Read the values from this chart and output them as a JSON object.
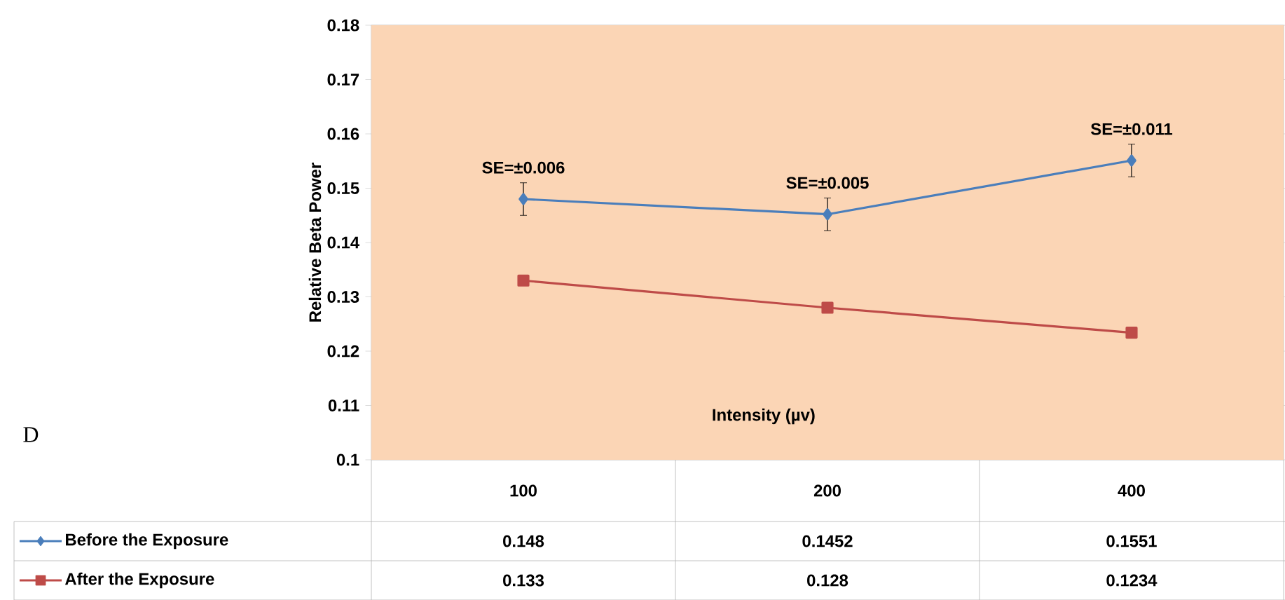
{
  "chart_data": {
    "type": "line",
    "ylabel": "Relative Beta Power",
    "xlabel": "Intensity (µv)",
    "categories": [
      "100",
      "200",
      "400"
    ],
    "series": [
      {
        "name": "Before the Exposure",
        "color": "#4a7ebb",
        "marker": "diamond",
        "values": [
          0.148,
          0.1452,
          0.1551
        ],
        "errors": [
          0.003,
          0.003,
          0.003
        ]
      },
      {
        "name": "After the Exposure",
        "color": "#be4b48",
        "marker": "square",
        "values": [
          0.133,
          0.128,
          0.1234
        ]
      }
    ],
    "ylim": [
      0.1,
      0.18
    ],
    "yticks": [
      0.1,
      0.11,
      0.12,
      0.13,
      0.14,
      0.15,
      0.16,
      0.17,
      0.18
    ],
    "annotations": [
      "SE=±0.006",
      "SE=±0.005",
      "SE=±0.011",
      "D"
    ],
    "bands": [
      {
        "axis": "y",
        "from": 0.1,
        "to": 0.18,
        "color": "#fbd5b5"
      }
    ],
    "data_labels": true,
    "legend": "bottom",
    "grid": false
  }
}
